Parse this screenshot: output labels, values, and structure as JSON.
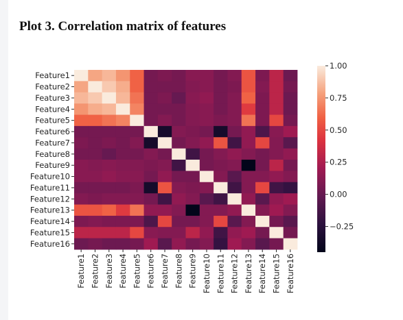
{
  "caption": "Plot 3. Correlation matrix of features",
  "chart_data": {
    "type": "heatmap",
    "title": "",
    "xlabel": "",
    "ylabel": "",
    "labels": [
      "Feature1",
      "Feature2",
      "Feature3",
      "Feature4",
      "Feature5",
      "Feature6",
      "Feature7",
      "Feature8",
      "Feature9",
      "Feature10",
      "Feature11",
      "Feature12",
      "Feature13",
      "Feature14",
      "Feature15",
      "Feature16"
    ],
    "colorbar": {
      "vmin": -0.45,
      "vmax": 1.0,
      "ticks": [
        1.0,
        0.75,
        0.5,
        0.25,
        0.0,
        -0.25
      ],
      "tick_labels": [
        "1.00",
        "0.75",
        "0.50",
        "0.25",
        "0.00",
        "−0.25"
      ],
      "colormap": "rocket"
    },
    "matrix": [
      [
        1.0,
        0.8,
        0.85,
        0.75,
        0.6,
        0.05,
        0.08,
        0.05,
        0.12,
        0.12,
        0.05,
        0.1,
        0.55,
        0.08,
        0.3,
        0.02
      ],
      [
        0.8,
        1.0,
        0.9,
        0.82,
        0.6,
        0.05,
        0.05,
        0.05,
        0.1,
        0.12,
        0.05,
        0.08,
        0.55,
        0.1,
        0.3,
        0.05
      ],
      [
        0.85,
        0.9,
        1.0,
        0.85,
        0.65,
        0.05,
        0.08,
        0.0,
        0.12,
        0.15,
        0.05,
        0.1,
        0.6,
        0.08,
        0.3,
        0.02
      ],
      [
        0.75,
        0.82,
        0.85,
        1.0,
        0.7,
        0.05,
        0.05,
        0.05,
        0.1,
        0.12,
        0.05,
        0.1,
        0.45,
        0.08,
        0.3,
        0.02
      ],
      [
        0.6,
        0.6,
        0.65,
        0.7,
        1.0,
        0.05,
        0.1,
        0.05,
        0.1,
        0.12,
        0.08,
        0.1,
        0.65,
        0.08,
        0.5,
        0.05
      ],
      [
        0.05,
        0.05,
        0.05,
        0.05,
        0.05,
        1.0,
        -0.35,
        0.1,
        0.08,
        0.05,
        -0.35,
        0.05,
        0.15,
        -0.1,
        0.12,
        0.2
      ],
      [
        0.08,
        0.05,
        0.08,
        0.05,
        0.1,
        -0.35,
        1.0,
        0.05,
        0.1,
        0.15,
        0.55,
        -0.15,
        0.15,
        0.5,
        0.1,
        -0.05
      ],
      [
        0.05,
        0.05,
        0.0,
        0.05,
        0.05,
        0.1,
        0.05,
        1.0,
        -0.15,
        0.05,
        0.1,
        0.15,
        0.1,
        0.05,
        0.1,
        0.15
      ],
      [
        0.12,
        0.1,
        0.12,
        0.1,
        0.1,
        0.08,
        0.1,
        -0.15,
        1.0,
        0.05,
        0.08,
        0.1,
        -0.45,
        0.05,
        0.3,
        0.05
      ],
      [
        0.12,
        0.12,
        0.15,
        0.12,
        0.12,
        0.05,
        0.15,
        0.05,
        0.05,
        1.0,
        0.1,
        -0.05,
        0.1,
        0.1,
        0.15,
        0.1
      ],
      [
        0.05,
        0.05,
        0.05,
        0.05,
        0.08,
        -0.35,
        0.55,
        0.1,
        0.08,
        0.1,
        1.0,
        -0.15,
        0.1,
        0.5,
        -0.15,
        -0.2
      ],
      [
        0.1,
        0.08,
        0.1,
        0.1,
        0.1,
        0.05,
        -0.15,
        0.15,
        0.1,
        -0.05,
        -0.15,
        1.0,
        0.15,
        -0.05,
        0.15,
        0.2
      ],
      [
        0.55,
        0.55,
        0.6,
        0.45,
        0.65,
        0.15,
        0.15,
        0.1,
        -0.45,
        0.1,
        0.1,
        0.15,
        1.0,
        0.1,
        0.2,
        0.1
      ],
      [
        0.08,
        0.1,
        0.08,
        0.08,
        0.08,
        -0.1,
        0.5,
        0.05,
        0.05,
        0.1,
        0.5,
        -0.05,
        0.1,
        1.0,
        0.05,
        -0.05
      ],
      [
        0.3,
        0.3,
        0.3,
        0.3,
        0.5,
        0.12,
        0.1,
        0.1,
        0.3,
        0.15,
        -0.15,
        0.15,
        0.2,
        0.05,
        1.0,
        0.05
      ],
      [
        0.02,
        0.05,
        0.02,
        0.02,
        0.05,
        0.2,
        -0.05,
        0.15,
        0.05,
        0.1,
        -0.2,
        0.2,
        0.1,
        -0.05,
        0.05,
        1.0
      ]
    ]
  }
}
